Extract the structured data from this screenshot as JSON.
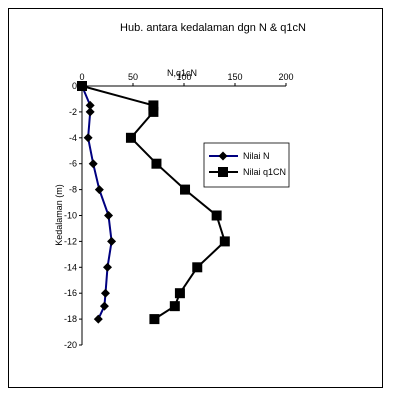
{
  "chart_data": {
    "type": "line",
    "title": "Hub. antara kedalaman dgn N & q1cN",
    "xlabel": "N,q1cN",
    "ylabel": "Kedalaman (m)",
    "xlim": [
      0,
      200
    ],
    "ylim": [
      -20,
      0
    ],
    "xticks": [
      "0",
      "50",
      "100",
      "150",
      "200"
    ],
    "yticks": [
      "0",
      "-2",
      "-4",
      "-6",
      "-8",
      "-10",
      "-12",
      "-14",
      "-16",
      "-18",
      "-20"
    ],
    "grid": false,
    "legend": "right",
    "series": [
      {
        "name": "Nilai N",
        "color": "#000080",
        "marker": "diamond",
        "points": [
          {
            "x": 0,
            "y": 0
          },
          {
            "x": 8,
            "y": -1.5
          },
          {
            "x": 8,
            "y": -2
          },
          {
            "x": 6,
            "y": -4
          },
          {
            "x": 11,
            "y": -6
          },
          {
            "x": 17,
            "y": -8
          },
          {
            "x": 26,
            "y": -10
          },
          {
            "x": 29,
            "y": -12
          },
          {
            "x": 25,
            "y": -14
          },
          {
            "x": 23,
            "y": -16
          },
          {
            "x": 22,
            "y": -17
          },
          {
            "x": 16,
            "y": -18
          }
        ]
      },
      {
        "name": "Nilai q1CN",
        "color": "#000000",
        "marker": "square",
        "points": [
          {
            "x": 0,
            "y": 0
          },
          {
            "x": 70,
            "y": -1.5
          },
          {
            "x": 70,
            "y": -2
          },
          {
            "x": 48,
            "y": -4
          },
          {
            "x": 73,
            "y": -6
          },
          {
            "x": 101,
            "y": -8
          },
          {
            "x": 132,
            "y": -10
          },
          {
            "x": 140,
            "y": -12
          },
          {
            "x": 113,
            "y": -14
          },
          {
            "x": 96,
            "y": -16
          },
          {
            "x": 91,
            "y": -17
          },
          {
            "x": 71,
            "y": -18
          }
        ]
      }
    ]
  }
}
